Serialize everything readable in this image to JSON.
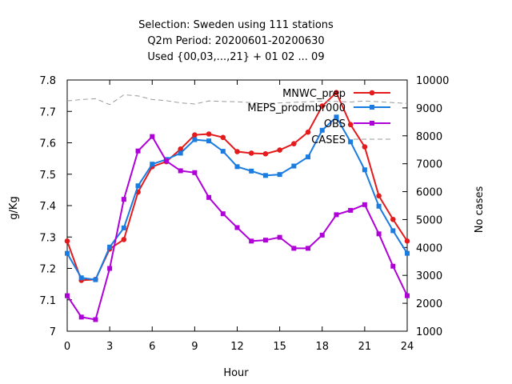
{
  "chart_data": {
    "type": "line",
    "title": [
      "Selection: Sweden using   111 stations",
      "Q2m   Period: 20200601-20200630",
      "Used {00,03,...,21} + 01 02 ... 09"
    ],
    "xlabel": "Hour",
    "ylabel": "g/Kg",
    "y2label": "No cases",
    "xlim": [
      0,
      24
    ],
    "ylim": [
      7.0,
      7.8
    ],
    "y2lim": [
      1000,
      10000
    ],
    "xticks": [
      0,
      3,
      6,
      9,
      12,
      15,
      18,
      21,
      24
    ],
    "yticks": [
      7,
      7.1,
      7.2,
      7.3,
      7.4,
      7.5,
      7.6,
      7.7,
      7.8
    ],
    "y2ticks": [
      1000,
      2000,
      3000,
      4000,
      5000,
      6000,
      7000,
      8000,
      9000,
      10000
    ],
    "grid": false,
    "legend_position": "top-right",
    "x": [
      0,
      1,
      2,
      3,
      4,
      5,
      6,
      7,
      8,
      9,
      10,
      11,
      12,
      13,
      14,
      15,
      16,
      17,
      18,
      19,
      20,
      21,
      22,
      23,
      24
    ],
    "series": [
      {
        "name": "MNWC_prep",
        "color": "#e41a1c",
        "marker": "circle",
        "axis": "y",
        "values": [
          7.287,
          7.162,
          7.165,
          7.262,
          7.292,
          7.443,
          7.524,
          7.54,
          7.58,
          7.625,
          7.628,
          7.617,
          7.572,
          7.567,
          7.565,
          7.577,
          7.597,
          7.634,
          7.717,
          7.76,
          7.658,
          7.587,
          7.431,
          7.356,
          7.287
        ]
      },
      {
        "name": "MEPS_prodmbr000",
        "color": "#1a7be0",
        "marker": "square",
        "axis": "y",
        "values": [
          7.248,
          7.17,
          7.164,
          7.268,
          7.329,
          7.463,
          7.532,
          7.547,
          7.567,
          7.61,
          7.606,
          7.573,
          7.524,
          7.51,
          7.496,
          7.499,
          7.526,
          7.555,
          7.64,
          7.682,
          7.603,
          7.514,
          7.398,
          7.32,
          7.248
        ]
      },
      {
        "name": "OBS",
        "color": "#b000d8",
        "marker": "square",
        "axis": "y",
        "values": [
          7.113,
          7.045,
          7.037,
          7.2,
          7.42,
          7.574,
          7.62,
          7.542,
          7.511,
          7.505,
          7.426,
          7.374,
          7.33,
          7.287,
          7.29,
          7.299,
          7.264,
          7.264,
          7.306,
          7.371,
          7.385,
          7.403,
          7.31,
          7.207,
          7.113
        ]
      },
      {
        "name": "CASES",
        "color": "#999999",
        "marker": "none",
        "dash": true,
        "axis": "y2",
        "values": [
          9250,
          9300,
          9330,
          9120,
          9470,
          9430,
          9300,
          9260,
          9180,
          9140,
          9250,
          9230,
          9220,
          9190,
          9160,
          9180,
          9200,
          9220,
          9240,
          9230,
          9210,
          9250,
          9220,
          9190,
          9160
        ]
      }
    ]
  }
}
